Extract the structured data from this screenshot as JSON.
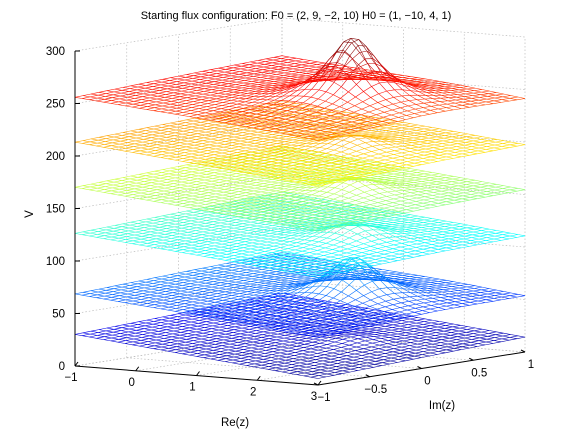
{
  "chart_data": {
    "type": "surface",
    "title": "Starting flux configuration: F0 = (2, 9, −2, 10) H0 = (1, −10, 4, 1)",
    "xlabel": "Re(z)",
    "ylabel": "Im(z)",
    "zlabel": "V",
    "xlim": [
      -1,
      3
    ],
    "ylim": [
      -1,
      1
    ],
    "zlim": [
      0,
      300
    ],
    "x_ticks": [
      "−1",
      "0",
      "1",
      "2",
      "3"
    ],
    "y_ticks": [
      "−1",
      "−0.5",
      "0",
      "0.5",
      "1"
    ],
    "z_ticks": [
      "0",
      "50",
      "100",
      "150",
      "200",
      "250",
      "300"
    ],
    "grid": true,
    "colormap": "jet",
    "surfaces": [
      {
        "base": 22,
        "peak": 27,
        "peak_at": [
          1.7,
          0.1
        ]
      },
      {
        "base": 60,
        "peak": 103,
        "peak_at": [
          1.7,
          0.1
        ]
      },
      {
        "base": 118,
        "peak": 135,
        "peak_at": [
          1.7,
          0.1
        ]
      },
      {
        "base": 162,
        "peak": 178,
        "peak_at": [
          1.7,
          0.1
        ]
      },
      {
        "base": 205,
        "peak": 218,
        "peak_at": [
          1.7,
          0.1
        ]
      },
      {
        "base": 247,
        "peak": 312,
        "peak_at": [
          1.7,
          0.1
        ]
      }
    ]
  }
}
